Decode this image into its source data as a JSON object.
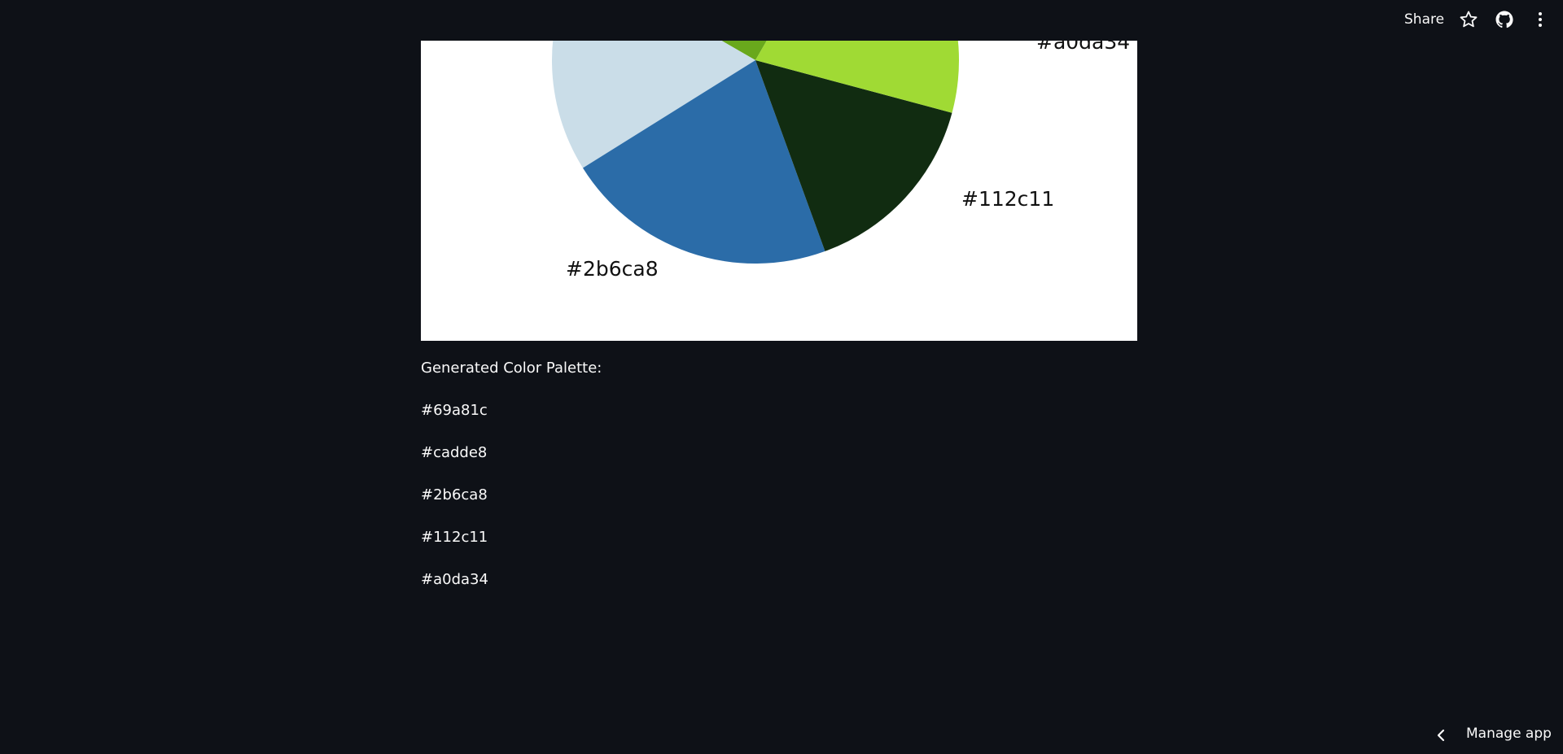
{
  "header": {
    "share_label": "Share",
    "icons": [
      "star-icon",
      "github-icon",
      "kebab-menu-icon"
    ]
  },
  "chart_data": {
    "type": "pie",
    "slices": [
      {
        "label": "#69a81c",
        "color": "#69a81c"
      },
      {
        "label": "#cadde8",
        "color": "#cadde8"
      },
      {
        "label": "#2b6ca8",
        "color": "#2b6ca8"
      },
      {
        "label": "#112c11",
        "color": "#112c11"
      },
      {
        "label": "#a0da34",
        "color": "#a0da34"
      }
    ],
    "visible_labels": [
      "#a0da34",
      "#112c11",
      "#2b6ca8"
    ]
  },
  "palette": {
    "title": "Generated Color Palette:",
    "colors": [
      "#69a81c",
      "#cadde8",
      "#2b6ca8",
      "#112c11",
      "#a0da34"
    ]
  },
  "footer": {
    "manage_label": "Manage app"
  },
  "colors": {
    "background": "#0e1117",
    "text": "#fafafa"
  }
}
